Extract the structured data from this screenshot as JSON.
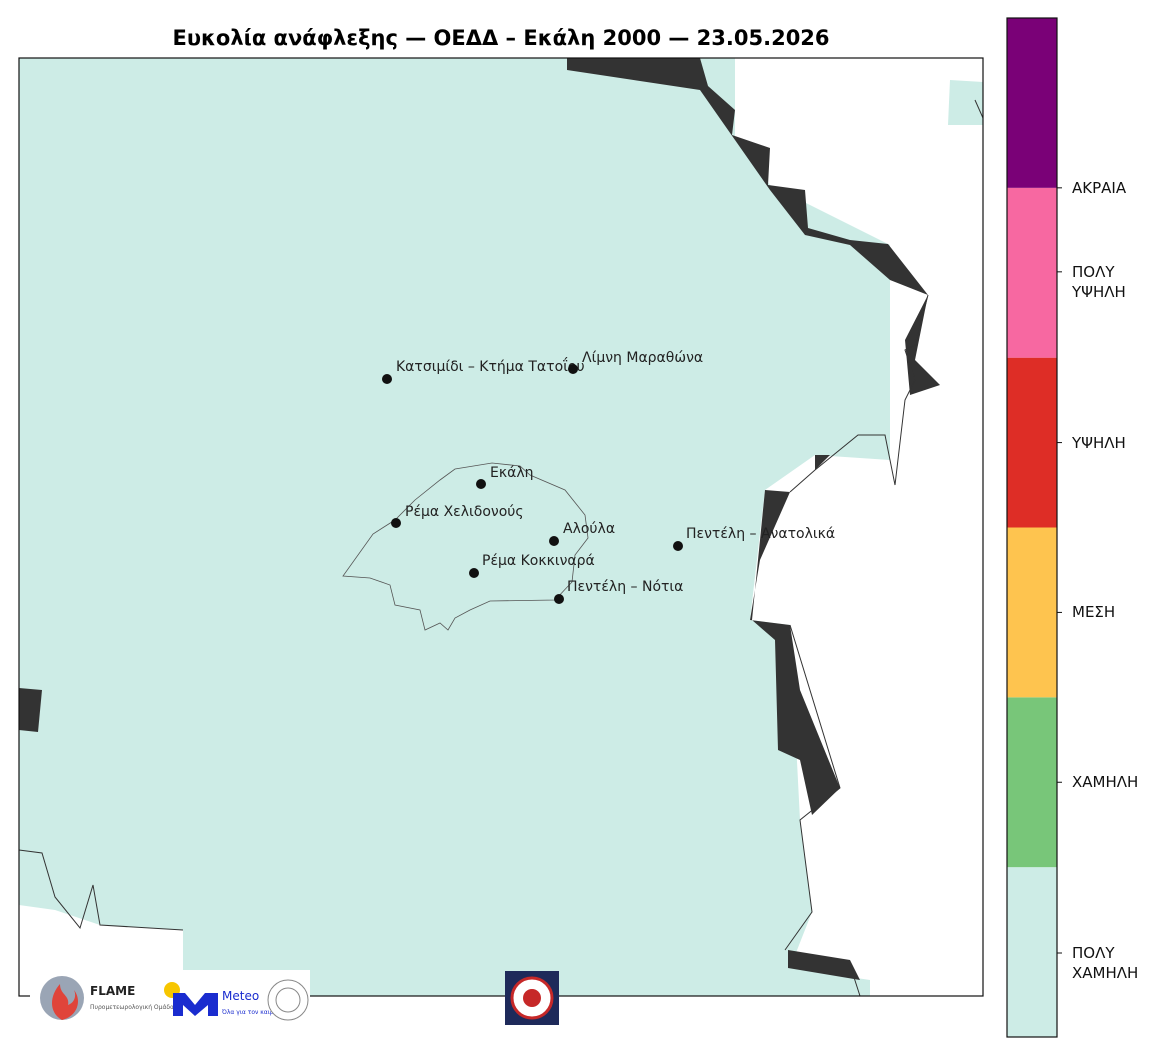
{
  "title": "Ευκολία ανάφλεξης — ΟΕΔΔ – Εκάλη 2000 — 23.05.2026",
  "places": [
    {
      "label": "Κατσιμίδι – Κτήμα Τατοΐου"
    },
    {
      "label": "Λίμνη Μαραθώνα"
    },
    {
      "label": "Εκάλη"
    },
    {
      "label": "Ρέμα Χελιδονούς"
    },
    {
      "label": "Αλούλα"
    },
    {
      "label": "Πεντέλη – Ανατολικά"
    },
    {
      "label": "Ρέμα Κοκκιναρά"
    },
    {
      "label": "Πεντέλη – Νότια"
    }
  ],
  "legend": {
    "levels": [
      {
        "label": "ΠΟΛΥ ΧΑΜΗΛΗ",
        "color": "#cdece6"
      },
      {
        "label": "ΧΑΜΗΛΗ",
        "color": "#78c679"
      },
      {
        "label": "ΜΕΣΗ",
        "color": "#fec44f"
      },
      {
        "label": "ΥΨΗΛΗ",
        "color": "#de2d26"
      },
      {
        "label": "ΠΟΛΥ ΥΨΗΛΗ",
        "color": "#f768a1"
      },
      {
        "label": "ΑΚΡΑΙΑ",
        "color": "#7a0177"
      }
    ]
  },
  "logos": {
    "flame": "FLAME",
    "flame_sub": "Πυρομετεωρολογική Ομάδα",
    "meteo": "Meteo",
    "meteo_sub": "Όλα για τον καιρό"
  }
}
